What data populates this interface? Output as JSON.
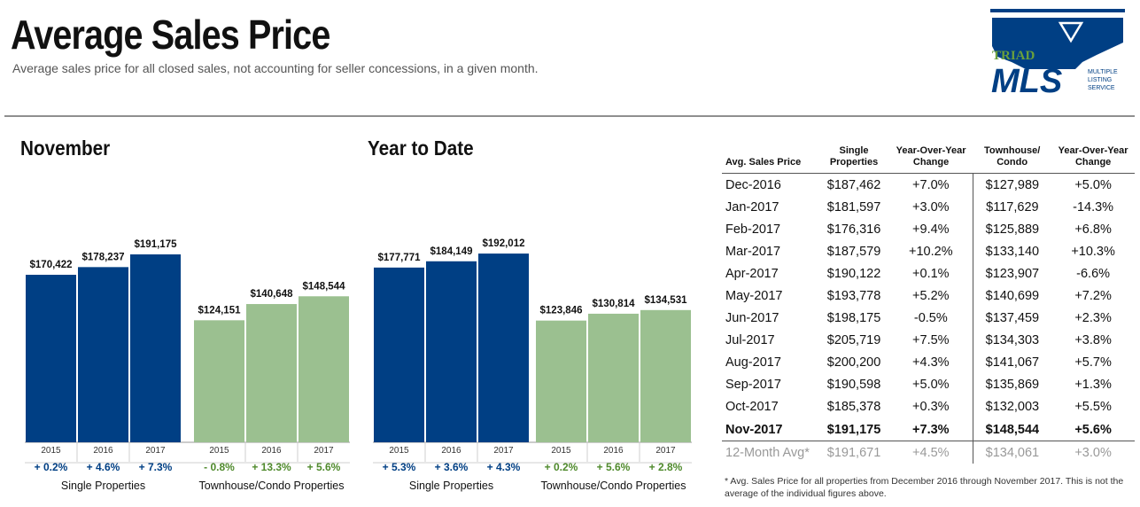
{
  "header": {
    "title": "Average Sales Price",
    "subtitle": "Average sales price for all closed sales, not accounting for seller concessions, in a given month.",
    "logo": {
      "line1": "TRIAD",
      "line2": "MLS",
      "tagline": [
        "MULTIPLE",
        "LISTING",
        "SERVICE"
      ]
    }
  },
  "colors": {
    "single": "#003f84",
    "townhouse": "#9bc090",
    "single_change": "#003f84",
    "townhouse_change": "#4f8a2c"
  },
  "chart_data": [
    {
      "type": "bar",
      "title": "November",
      "ylim": [
        0,
        220000
      ],
      "groups": [
        {
          "label": "Single Properties",
          "categories": [
            "2015",
            "2016",
            "2017"
          ],
          "values": [
            170422,
            178237,
            191175
          ],
          "value_labels": [
            "$170,422",
            "$178,237",
            "$191,175"
          ],
          "changes": [
            "+ 0.2%",
            "+ 4.6%",
            "+ 7.3%"
          ]
        },
        {
          "label": "Townhouse/Condo Properties",
          "categories": [
            "2015",
            "2016",
            "2017"
          ],
          "values": [
            124151,
            140648,
            148544
          ],
          "value_labels": [
            "$124,151",
            "$140,648",
            "$148,544"
          ],
          "changes": [
            "- 0.8%",
            "+ 13.3%",
            "+ 5.6%"
          ]
        }
      ]
    },
    {
      "type": "bar",
      "title": "Year to Date",
      "ylim": [
        0,
        220000
      ],
      "groups": [
        {
          "label": "Single Properties",
          "categories": [
            "2015",
            "2016",
            "2017"
          ],
          "values": [
            177771,
            184149,
            192012
          ],
          "value_labels": [
            "$177,771",
            "$184,149",
            "$192,012"
          ],
          "changes": [
            "+ 5.3%",
            "+ 3.6%",
            "+ 4.3%"
          ]
        },
        {
          "label": "Townhouse/Condo Properties",
          "categories": [
            "2015",
            "2016",
            "2017"
          ],
          "values": [
            123846,
            130814,
            134531
          ],
          "value_labels": [
            "$123,846",
            "$130,814",
            "$134,531"
          ],
          "changes": [
            "+ 0.2%",
            "+ 5.6%",
            "+ 2.8%"
          ]
        }
      ]
    },
    {
      "type": "table",
      "columns": [
        "Avg. Sales Price",
        "Single Properties",
        "Year-Over-Year Change",
        "Townhouse/ Condo",
        "Year-Over-Year Change"
      ],
      "rows": [
        [
          "Dec-2016",
          "$187,462",
          "+7.0%",
          "$127,989",
          "+5.0%"
        ],
        [
          "Jan-2017",
          "$181,597",
          "+3.0%",
          "$117,629",
          "-14.3%"
        ],
        [
          "Feb-2017",
          "$176,316",
          "+9.4%",
          "$125,889",
          "+6.8%"
        ],
        [
          "Mar-2017",
          "$187,579",
          "+10.2%",
          "$133,140",
          "+10.3%"
        ],
        [
          "Apr-2017",
          "$190,122",
          "+0.1%",
          "$123,907",
          "-6.6%"
        ],
        [
          "May-2017",
          "$193,778",
          "+5.2%",
          "$140,699",
          "+7.2%"
        ],
        [
          "Jun-2017",
          "$198,175",
          "-0.5%",
          "$137,459",
          "+2.3%"
        ],
        [
          "Jul-2017",
          "$205,719",
          "+7.5%",
          "$134,303",
          "+3.8%"
        ],
        [
          "Aug-2017",
          "$200,200",
          "+4.3%",
          "$141,067",
          "+5.7%"
        ],
        [
          "Sep-2017",
          "$190,598",
          "+5.0%",
          "$135,869",
          "+1.3%"
        ],
        [
          "Oct-2017",
          "$185,378",
          "+0.3%",
          "$132,003",
          "+5.5%"
        ],
        [
          "Nov-2017",
          "$191,175",
          "+7.3%",
          "$148,544",
          "+5.6%"
        ]
      ],
      "average_row": [
        "12-Month Avg*",
        "$191,671",
        "+4.5%",
        "$134,061",
        "+3.0%"
      ],
      "footnote": "* Avg. Sales Price for all properties from December 2016 through November 2017. This is not the average of the individual figures above."
    }
  ]
}
